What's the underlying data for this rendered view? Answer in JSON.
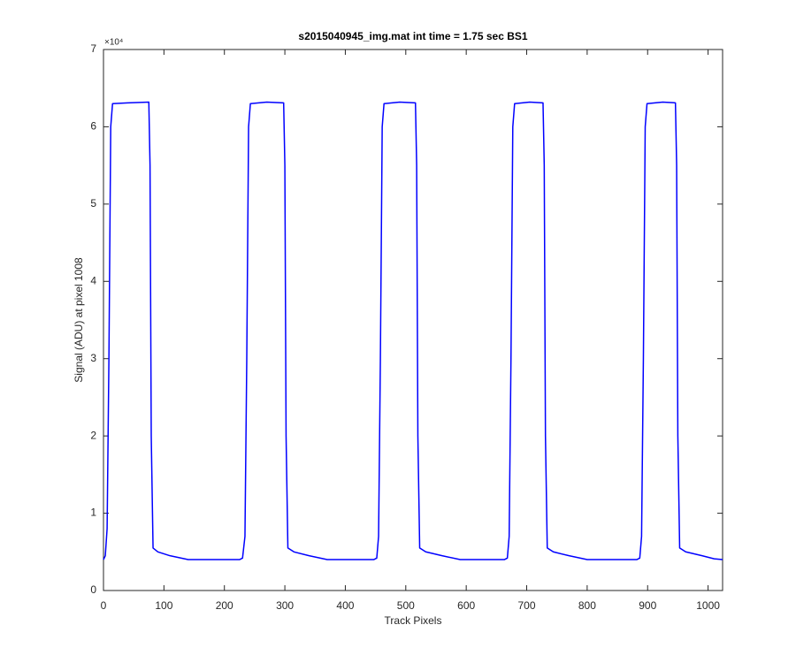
{
  "chart_data": {
    "type": "line",
    "title": "s2015040945_img.mat int time = 1.75 sec   BS1",
    "xlabel": "Track Pixels",
    "ylabel": "Signal (ADU) at pixel 1008",
    "y_exponent_label": "×10⁴",
    "xlim": [
      0,
      1024
    ],
    "ylim": [
      0,
      70000
    ],
    "xticks": [
      0,
      100,
      200,
      300,
      400,
      500,
      600,
      700,
      800,
      900,
      1000
    ],
    "yticks": [
      {
        "value": 0,
        "label": "0"
      },
      {
        "value": 10000,
        "label": "1"
      },
      {
        "value": 20000,
        "label": "2"
      },
      {
        "value": 30000,
        "label": "3"
      },
      {
        "value": 40000,
        "label": "4"
      },
      {
        "value": 50000,
        "label": "5"
      },
      {
        "value": 60000,
        "label": "6"
      },
      {
        "value": 70000,
        "label": "7"
      }
    ],
    "grid": false,
    "x": [
      0,
      3,
      6,
      9,
      12,
      15,
      40,
      75,
      77,
      79,
      82,
      90,
      110,
      140,
      180,
      225,
      230,
      234,
      237,
      240,
      243,
      270,
      298,
      300,
      302,
      305,
      315,
      340,
      370,
      400,
      447,
      452,
      455,
      458,
      461,
      464,
      490,
      516,
      518,
      520,
      523,
      533,
      560,
      590,
      620,
      663,
      668,
      671,
      674,
      677,
      680,
      705,
      727,
      729,
      731,
      734,
      744,
      770,
      800,
      840,
      882,
      887,
      890,
      893,
      896,
      899,
      925,
      946,
      948,
      950,
      953,
      963,
      990,
      1010,
      1024
    ],
    "series": [
      {
        "color": "#0000ff",
        "values": [
          4000,
          4500,
          8000,
          30000,
          60000,
          63000,
          63100,
          63200,
          55000,
          20000,
          5500,
          5000,
          4500,
          4000,
          4000,
          4000,
          4200,
          7000,
          30000,
          60000,
          63000,
          63200,
          63100,
          55000,
          20000,
          5500,
          5000,
          4500,
          4000,
          4000,
          4000,
          4200,
          7000,
          30000,
          60000,
          63000,
          63200,
          63100,
          55000,
          20000,
          5500,
          5000,
          4500,
          4000,
          4000,
          4000,
          4200,
          7000,
          30000,
          60000,
          63000,
          63200,
          63100,
          55000,
          20000,
          5500,
          5000,
          4500,
          4000,
          4000,
          4000,
          4200,
          7000,
          30000,
          60000,
          63000,
          63200,
          63100,
          55000,
          20000,
          5500,
          5000,
          4500,
          4100,
          4000
        ]
      }
    ]
  }
}
